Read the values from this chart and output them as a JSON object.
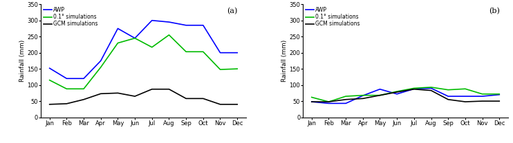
{
  "months": [
    "Jan",
    "Feb",
    "Mar",
    "Apr",
    "May",
    "Jun",
    "Jul",
    "Aug",
    "Sep",
    "Oct",
    "Nov",
    "Dec"
  ],
  "panel_a": {
    "AWP": [
      152,
      120,
      120,
      175,
      275,
      245,
      300,
      295,
      285,
      285,
      200,
      200
    ],
    "sim_01deg": [
      115,
      88,
      88,
      155,
      230,
      245,
      217,
      255,
      203,
      203,
      148,
      150
    ],
    "GCM": [
      40,
      42,
      55,
      73,
      75,
      65,
      87,
      87,
      58,
      58,
      40,
      40
    ]
  },
  "panel_b": {
    "AWP": [
      48,
      43,
      43,
      67,
      87,
      72,
      88,
      90,
      65,
      65,
      65,
      70
    ],
    "sim_01deg": [
      62,
      48,
      65,
      68,
      68,
      80,
      90,
      93,
      85,
      88,
      72,
      72
    ],
    "GCM": [
      48,
      48,
      55,
      58,
      68,
      78,
      87,
      83,
      55,
      48,
      50,
      50
    ]
  },
  "colors": {
    "AWP": "#0000ff",
    "sim_01deg": "#00bb00",
    "GCM": "#000000"
  },
  "legend_labels": {
    "AWP": "AWP",
    "sim_01deg": "0.1° simulations",
    "GCM": "GCM simulations"
  },
  "ylabel": "Rainfall (mm)",
  "ylim": [
    0,
    350
  ],
  "yticks": [
    0,
    50,
    100,
    150,
    200,
    250,
    300,
    350
  ],
  "panel_labels": [
    "(a)",
    "(b)"
  ],
  "linewidth": 1.2,
  "tick_fontsize": 6,
  "label_fontsize": 6.5,
  "legend_fontsize": 5.5,
  "panel_label_fontsize": 8
}
